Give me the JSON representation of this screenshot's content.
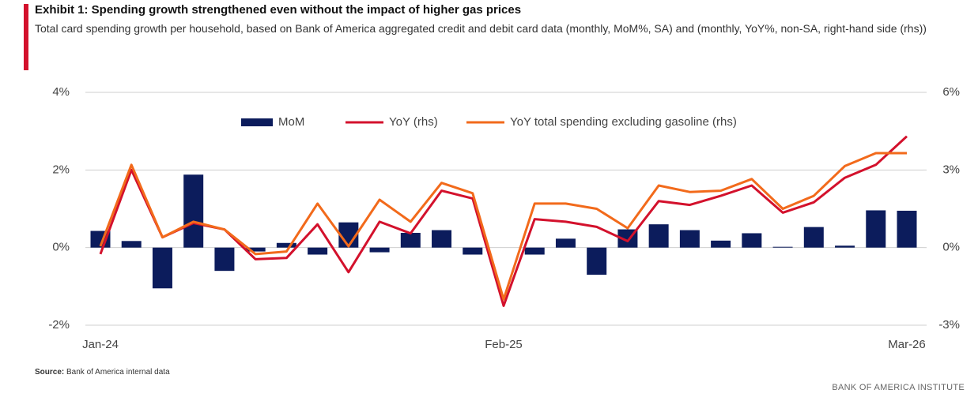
{
  "chart_data": {
    "type": "combo",
    "title": "Exhibit 1: Spending growth strengthened even without the impact of higher gas prices",
    "subtitle": "Total card spending growth per household, based on Bank of America aggregated credit and debit card data (monthly, MoM%, SA) and (monthly, YoY%, non-SA, right-hand side (rhs))",
    "categories": [
      "Jan-24",
      null,
      null,
      null,
      null,
      null,
      null,
      null,
      null,
      null,
      null,
      null,
      null,
      "Feb-25",
      null,
      null,
      null,
      null,
      null,
      null,
      null,
      null,
      null,
      null,
      null,
      null,
      "Mar-26"
    ],
    "series": [
      {
        "name": "MoM",
        "type": "bar",
        "color": "#0c1c5c",
        "values": [
          0.43,
          0.17,
          -1.05,
          1.88,
          -0.6,
          -0.1,
          0.12,
          -0.18,
          0.65,
          -0.12,
          0.38,
          0.45,
          -0.18,
          0,
          -0.18,
          0.23,
          -0.7,
          0.47,
          0.6,
          0.45,
          0.18,
          0.37,
          0.02,
          0.53,
          0.05,
          0.96,
          0.95
        ]
      },
      {
        "name": "YoY (rhs)",
        "type": "line",
        "axis": "y2",
        "color": "#d3112c",
        "values": [
          -0.25,
          3.0,
          0.4,
          0.95,
          0.7,
          -0.45,
          -0.4,
          0.9,
          -0.95,
          1.0,
          0.55,
          2.2,
          1.9,
          -2.25,
          1.1,
          1.0,
          0.8,
          0.25,
          1.8,
          1.65,
          2.0,
          2.4,
          1.35,
          1.75,
          2.7,
          3.2,
          4.3
        ]
      },
      {
        "name": "YoY total spending excluding gasoline (rhs)",
        "type": "line",
        "axis": "y2",
        "color": "#f26a1b",
        "values": [
          0.05,
          3.2,
          0.4,
          1.0,
          0.7,
          -0.25,
          -0.15,
          1.7,
          0.05,
          1.85,
          1.0,
          2.5,
          2.1,
          -2.0,
          1.7,
          1.7,
          1.5,
          0.75,
          2.4,
          2.15,
          2.2,
          2.65,
          1.5,
          2.0,
          3.15,
          3.65,
          3.65
        ]
      }
    ],
    "ylim": [
      -2,
      4
    ],
    "yticks": [
      {
        "value": -2,
        "label": "-2%"
      },
      {
        "value": 0,
        "label": "0%"
      },
      {
        "value": 2,
        "label": "2%"
      },
      {
        "value": 4,
        "label": "4%"
      }
    ],
    "y2lim": [
      -3,
      6
    ],
    "y2ticks": [
      {
        "value": -3,
        "label": "-3%"
      },
      {
        "value": 0,
        "label": "0%"
      },
      {
        "value": 3,
        "label": "3%"
      },
      {
        "value": 6,
        "label": "6%"
      }
    ],
    "grid": true,
    "legend": "top",
    "source_label": "Source:",
    "source": "Bank of America internal data",
    "footer": "BANK OF AMERICA INSTITUTE"
  }
}
